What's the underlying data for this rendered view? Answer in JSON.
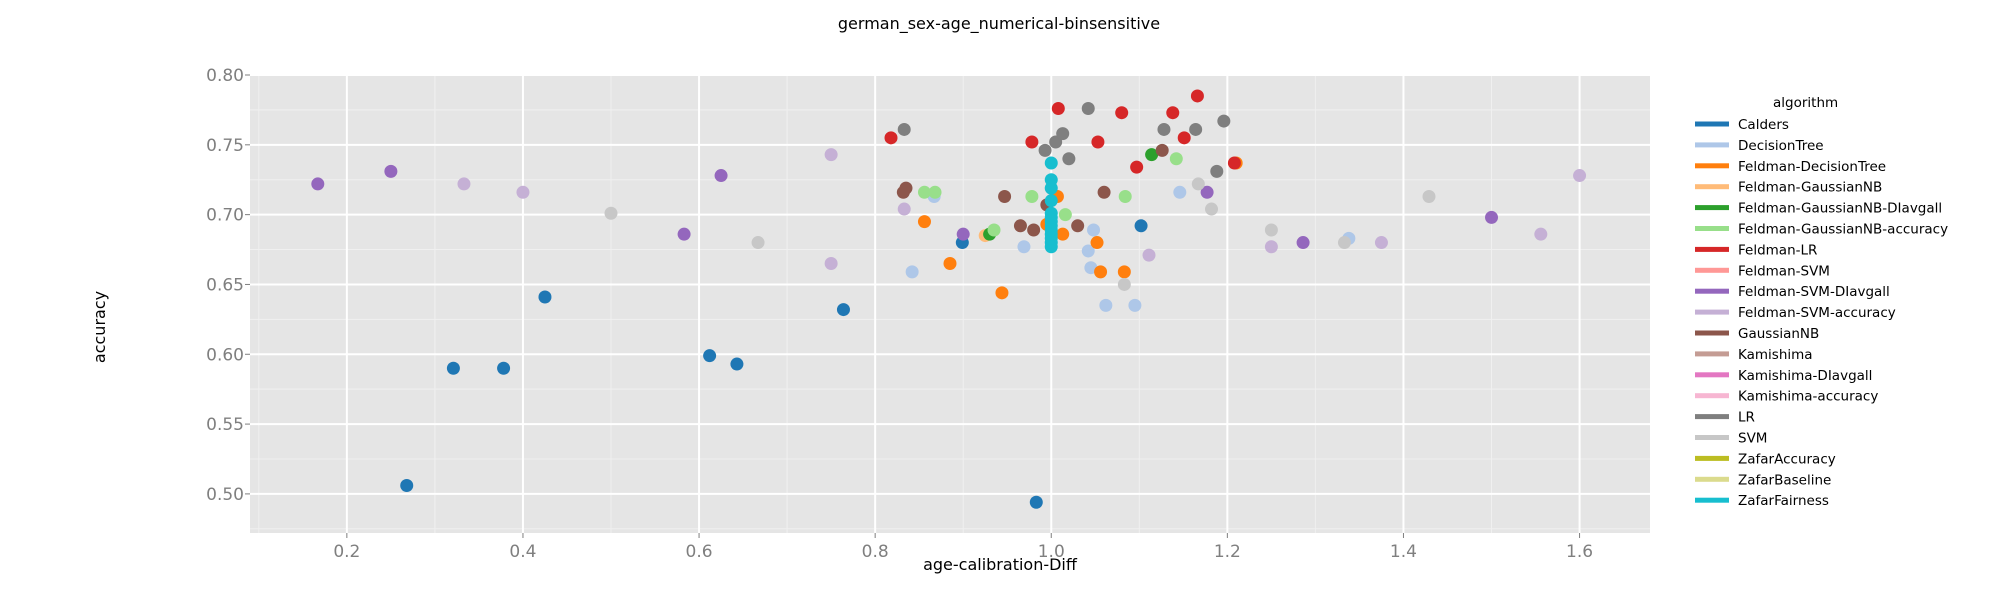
{
  "chart_data": {
    "type": "scatter",
    "title": "german_sex-age_numerical-binsensitive",
    "xlabel": "age-calibration-Diff",
    "ylabel": "accuracy",
    "xlim": [
      0.09,
      1.68
    ],
    "ylim": [
      0.472,
      0.8
    ],
    "xticks": [
      0.2,
      0.4,
      0.6,
      0.8,
      1.0,
      1.2,
      1.4,
      1.6
    ],
    "xtick_labels": [
      "0.2",
      "0.4",
      "0.6",
      "0.8",
      "1.0",
      "1.2",
      "1.4",
      "1.6"
    ],
    "yticks": [
      0.5,
      0.55,
      0.6,
      0.65,
      0.7,
      0.75,
      0.8
    ],
    "ytick_labels": [
      "0.50",
      "0.55",
      "0.60",
      "0.65",
      "0.70",
      "0.75",
      "0.80"
    ],
    "grid": true,
    "background": "#e5e5e5",
    "legend_title": "algorithm",
    "legend_position": "right",
    "series": [
      {
        "name": "Calders",
        "color": "#1f77b4",
        "points": [
          [
            0.268,
            0.506
          ],
          [
            0.321,
            0.59
          ],
          [
            0.378,
            0.59
          ],
          [
            0.425,
            0.641
          ],
          [
            0.612,
            0.599
          ],
          [
            0.643,
            0.593
          ],
          [
            0.764,
            0.632
          ],
          [
            0.899,
            0.68
          ],
          [
            0.983,
            0.494
          ],
          [
            1.102,
            0.692
          ]
        ]
      },
      {
        "name": "DecisionTree",
        "color": "#aec7e8",
        "points": [
          [
            0.842,
            0.659
          ],
          [
            0.867,
            0.713
          ],
          [
            0.969,
            0.677
          ],
          [
            1.042,
            0.674
          ],
          [
            1.045,
            0.662
          ],
          [
            1.048,
            0.689
          ],
          [
            1.062,
            0.635
          ],
          [
            1.095,
            0.635
          ],
          [
            1.146,
            0.716
          ],
          [
            1.338,
            0.683
          ]
        ]
      },
      {
        "name": "Feldman-DecisionTree",
        "color": "#ff7f0e",
        "points": [
          [
            0.856,
            0.695
          ],
          [
            0.885,
            0.665
          ],
          [
            0.944,
            0.644
          ],
          [
            0.995,
            0.693
          ],
          [
            1.007,
            0.713
          ],
          [
            1.013,
            0.686
          ],
          [
            1.052,
            0.68
          ],
          [
            1.056,
            0.659
          ],
          [
            1.083,
            0.659
          ],
          [
            1.21,
            0.737
          ]
        ]
      },
      {
        "name": "Feldman-GaussianNB",
        "color": "#ffbb78",
        "points": [
          [
            0.925,
            0.685
          ]
        ]
      },
      {
        "name": "Feldman-GaussianNB-DIavgall",
        "color": "#2ca02c",
        "points": [
          [
            0.93,
            0.686
          ],
          [
            1.114,
            0.743
          ]
        ]
      },
      {
        "name": "Feldman-GaussianNB-accuracy",
        "color": "#98df8a",
        "points": [
          [
            0.856,
            0.716
          ],
          [
            0.868,
            0.716
          ],
          [
            0.935,
            0.689
          ],
          [
            0.978,
            0.713
          ],
          [
            1.016,
            0.7
          ],
          [
            1.084,
            0.713
          ],
          [
            1.142,
            0.74
          ]
        ]
      },
      {
        "name": "Feldman-LR",
        "color": "#d62728",
        "points": [
          [
            0.818,
            0.755
          ],
          [
            0.978,
            0.752
          ],
          [
            1.008,
            0.776
          ],
          [
            1.053,
            0.752
          ],
          [
            1.08,
            0.773
          ],
          [
            1.097,
            0.734
          ],
          [
            1.138,
            0.773
          ],
          [
            1.151,
            0.755
          ],
          [
            1.166,
            0.785
          ],
          [
            1.208,
            0.737
          ]
        ]
      },
      {
        "name": "Feldman-SVM",
        "color": "#ff9896",
        "points": []
      },
      {
        "name": "Feldman-SVM-DIavgall",
        "color": "#9467bd",
        "points": [
          [
            0.167,
            0.722
          ],
          [
            0.25,
            0.731
          ],
          [
            0.583,
            0.686
          ],
          [
            0.625,
            0.728
          ],
          [
            0.9,
            0.686
          ],
          [
            1.177,
            0.716
          ],
          [
            1.286,
            0.68
          ],
          [
            1.5,
            0.698
          ]
        ]
      },
      {
        "name": "Feldman-SVM-accuracy",
        "color": "#c5b0d5",
        "points": [
          [
            0.333,
            0.722
          ],
          [
            0.4,
            0.716
          ],
          [
            0.75,
            0.665
          ],
          [
            0.75,
            0.743
          ],
          [
            0.833,
            0.704
          ],
          [
            1.111,
            0.671
          ],
          [
            1.25,
            0.677
          ],
          [
            1.375,
            0.68
          ],
          [
            1.556,
            0.686
          ],
          [
            1.6,
            0.728
          ]
        ]
      },
      {
        "name": "GaussianNB",
        "color": "#8c564b",
        "points": [
          [
            0.832,
            0.716
          ],
          [
            0.835,
            0.719
          ],
          [
            0.947,
            0.713
          ],
          [
            0.965,
            0.692
          ],
          [
            0.98,
            0.689
          ],
          [
            0.995,
            0.707
          ],
          [
            1.03,
            0.692
          ],
          [
            1.06,
            0.716
          ],
          [
            1.126,
            0.746
          ]
        ]
      },
      {
        "name": "Kamishima",
        "color": "#c49c94",
        "points": []
      },
      {
        "name": "Kamishima-DIavgall",
        "color": "#e377c2",
        "points": []
      },
      {
        "name": "Kamishima-accuracy",
        "color": "#f7b6d2",
        "points": []
      },
      {
        "name": "LR",
        "color": "#7f7f7f",
        "points": [
          [
            0.833,
            0.761
          ],
          [
            0.993,
            0.746
          ],
          [
            1.005,
            0.752
          ],
          [
            1.013,
            0.758
          ],
          [
            1.02,
            0.74
          ],
          [
            1.042,
            0.776
          ],
          [
            1.128,
            0.761
          ],
          [
            1.164,
            0.761
          ],
          [
            1.188,
            0.731
          ],
          [
            1.196,
            0.767
          ]
        ]
      },
      {
        "name": "SVM",
        "color": "#c7c7c7",
        "points": [
          [
            0.5,
            0.701
          ],
          [
            0.667,
            0.68
          ],
          [
            1.083,
            0.65
          ],
          [
            1.167,
            0.722
          ],
          [
            1.182,
            0.704
          ],
          [
            1.25,
            0.689
          ],
          [
            1.333,
            0.68
          ],
          [
            1.429,
            0.713
          ]
        ]
      },
      {
        "name": "ZafarAccuracy",
        "color": "#bcbd22",
        "points": []
      },
      {
        "name": "ZafarBaseline",
        "color": "#dbdb8d",
        "points": []
      },
      {
        "name": "ZafarFairness",
        "color": "#17becf",
        "points": [
          [
            1.0,
            0.677
          ],
          [
            1.0,
            0.68
          ],
          [
            1.0,
            0.683
          ],
          [
            1.0,
            0.686
          ],
          [
            1.0,
            0.689
          ],
          [
            1.0,
            0.692
          ],
          [
            1.0,
            0.695
          ],
          [
            1.0,
            0.698
          ],
          [
            1.0,
            0.701
          ],
          [
            1.0,
            0.71
          ],
          [
            1.0,
            0.719
          ],
          [
            1.0,
            0.725
          ],
          [
            1.0,
            0.737
          ]
        ]
      }
    ]
  }
}
